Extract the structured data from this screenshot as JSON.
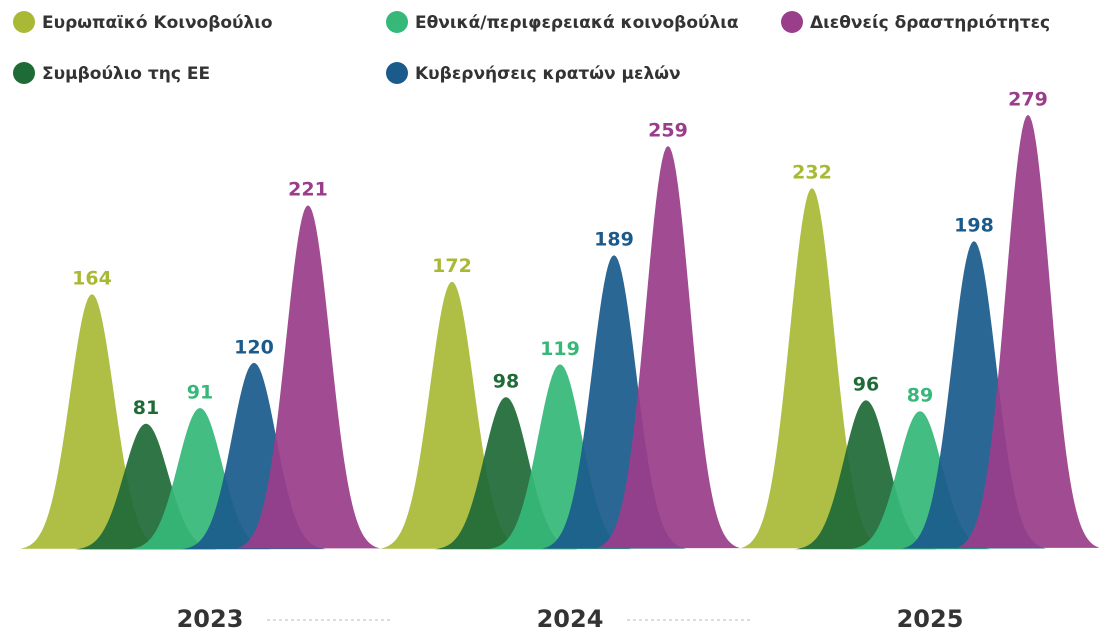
{
  "chart_data": {
    "type": "peak",
    "categories": [
      "2023",
      "2024",
      "2025"
    ],
    "series": [
      {
        "name": "Ευρωπαϊκό Κοινοβούλιο",
        "color": "#a9b936",
        "values": [
          164,
          172,
          232
        ]
      },
      {
        "name": "Συμβούλιο της ΕΕ",
        "color": "#1f6b38",
        "values": [
          81,
          98,
          96
        ]
      },
      {
        "name": "Εθνικά/περιφερειακά κοινοβούλια",
        "color": "#35b878",
        "values": [
          91,
          119,
          89
        ]
      },
      {
        "name": "Κυβερνήσεις κρατών μελών",
        "color": "#1b5b8c",
        "values": [
          120,
          189,
          198
        ]
      },
      {
        "name": "Διεθνείς δραστηριότητες",
        "color": "#9a3d8b",
        "values": [
          221,
          259,
          279
        ]
      }
    ]
  }
}
